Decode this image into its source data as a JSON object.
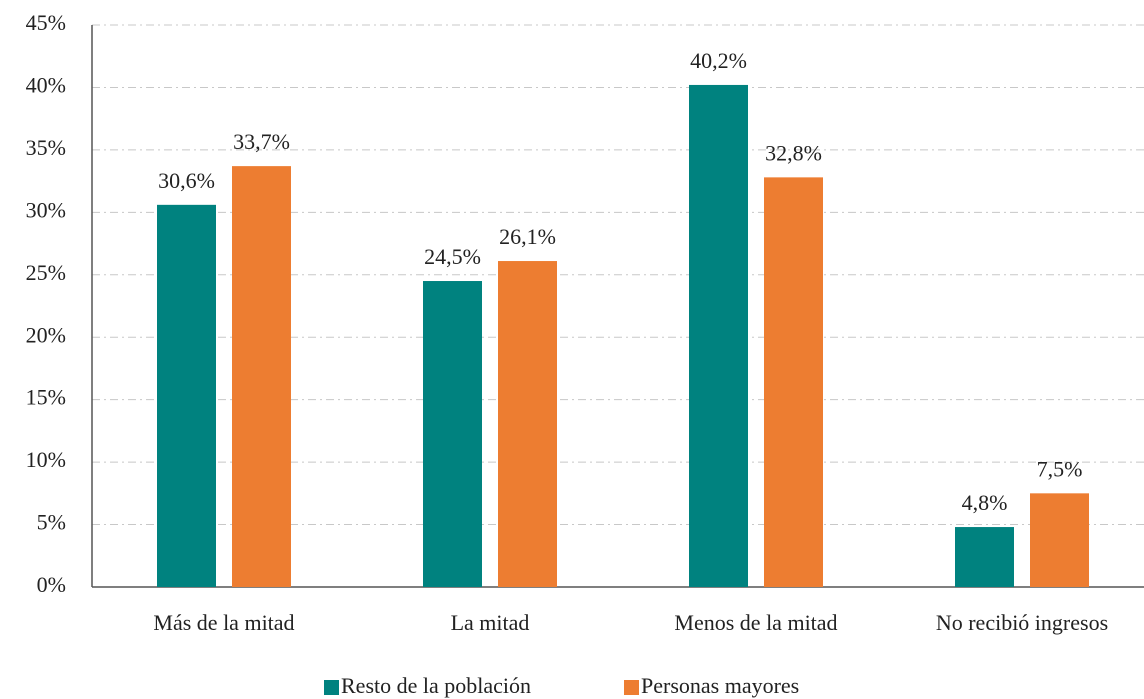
{
  "chart_data": {
    "type": "bar",
    "categories": [
      "Más de la mitad",
      "La mitad",
      "Menos de la mitad",
      "No recibió ingresos"
    ],
    "series": [
      {
        "name": "Resto de la población",
        "color": "#00827f",
        "values": [
          30.6,
          24.5,
          40.2,
          4.8
        ],
        "value_labels": [
          "30,6%",
          "24,5%",
          "40,2%",
          "4,8%"
        ]
      },
      {
        "name": "Personas mayores",
        "color": "#ed7d31",
        "values": [
          33.7,
          26.1,
          32.8,
          7.5
        ],
        "value_labels": [
          "33,7%",
          "26,1%",
          "32,8%",
          "7,5%"
        ]
      }
    ],
    "ylim": [
      0,
      45
    ],
    "yticks": [
      {
        "value": 0,
        "label": "0%"
      },
      {
        "value": 5,
        "label": "5%"
      },
      {
        "value": 10,
        "label": "10%"
      },
      {
        "value": 15,
        "label": "15%"
      },
      {
        "value": 20,
        "label": "20%"
      },
      {
        "value": 25,
        "label": "25%"
      },
      {
        "value": 30,
        "label": "30%"
      },
      {
        "value": 35,
        "label": "35%"
      },
      {
        "value": 40,
        "label": "40%"
      },
      {
        "value": 45,
        "label": "45%"
      }
    ],
    "grid": true,
    "legend": "bottom"
  }
}
